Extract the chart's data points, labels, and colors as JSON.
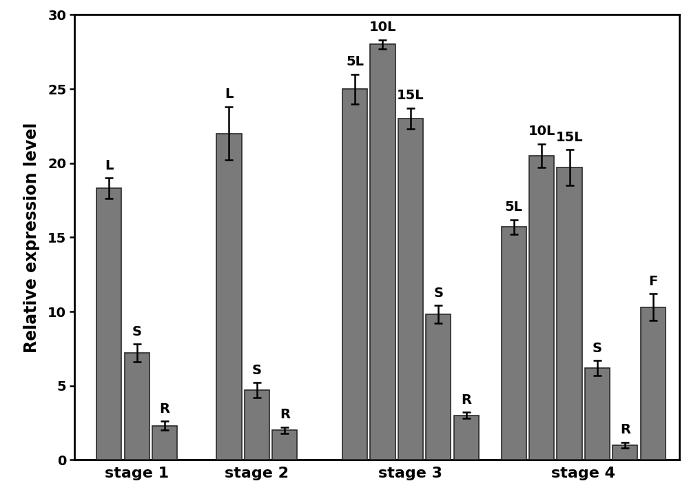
{
  "stages": [
    "stage 1",
    "stage 2",
    "stage 3",
    "stage 4"
  ],
  "stage1": {
    "labels": [
      "L",
      "S",
      "R"
    ],
    "values": [
      18.3,
      7.2,
      2.3
    ],
    "errors": [
      0.7,
      0.6,
      0.3
    ]
  },
  "stage2": {
    "labels": [
      "L",
      "S",
      "R"
    ],
    "values": [
      22.0,
      4.7,
      2.0
    ],
    "errors": [
      1.8,
      0.5,
      0.2
    ]
  },
  "stage3": {
    "labels": [
      "5L",
      "10L",
      "15L",
      "S",
      "R"
    ],
    "values": [
      25.0,
      28.0,
      23.0,
      9.8,
      3.0
    ],
    "errors": [
      1.0,
      0.3,
      0.7,
      0.6,
      0.2
    ]
  },
  "stage4": {
    "labels": [
      "5L",
      "10L",
      "15L",
      "S",
      "R",
      "F"
    ],
    "values": [
      15.7,
      20.5,
      19.7,
      6.2,
      1.0,
      10.3
    ],
    "errors": [
      0.5,
      0.8,
      1.2,
      0.5,
      0.2,
      0.9
    ]
  },
  "bar_color": "#7a7a7a",
  "bar_edge_color": "#2a2a2a",
  "bar_width": 0.52,
  "ylabel": "Relative expression level",
  "ylim": [
    0,
    30
  ],
  "yticks": [
    0,
    5,
    10,
    15,
    20,
    25,
    30
  ],
  "label_fontsize": 14,
  "axis_label_fontsize": 17,
  "tick_fontsize": 14,
  "stage_label_fontsize": 16,
  "background_color": "#ffffff",
  "group_centers": [
    1.5,
    4.0,
    7.2,
    10.8
  ],
  "bar_spacing": 0.58,
  "xlim_left": 0.2,
  "xlim_right": 12.8
}
